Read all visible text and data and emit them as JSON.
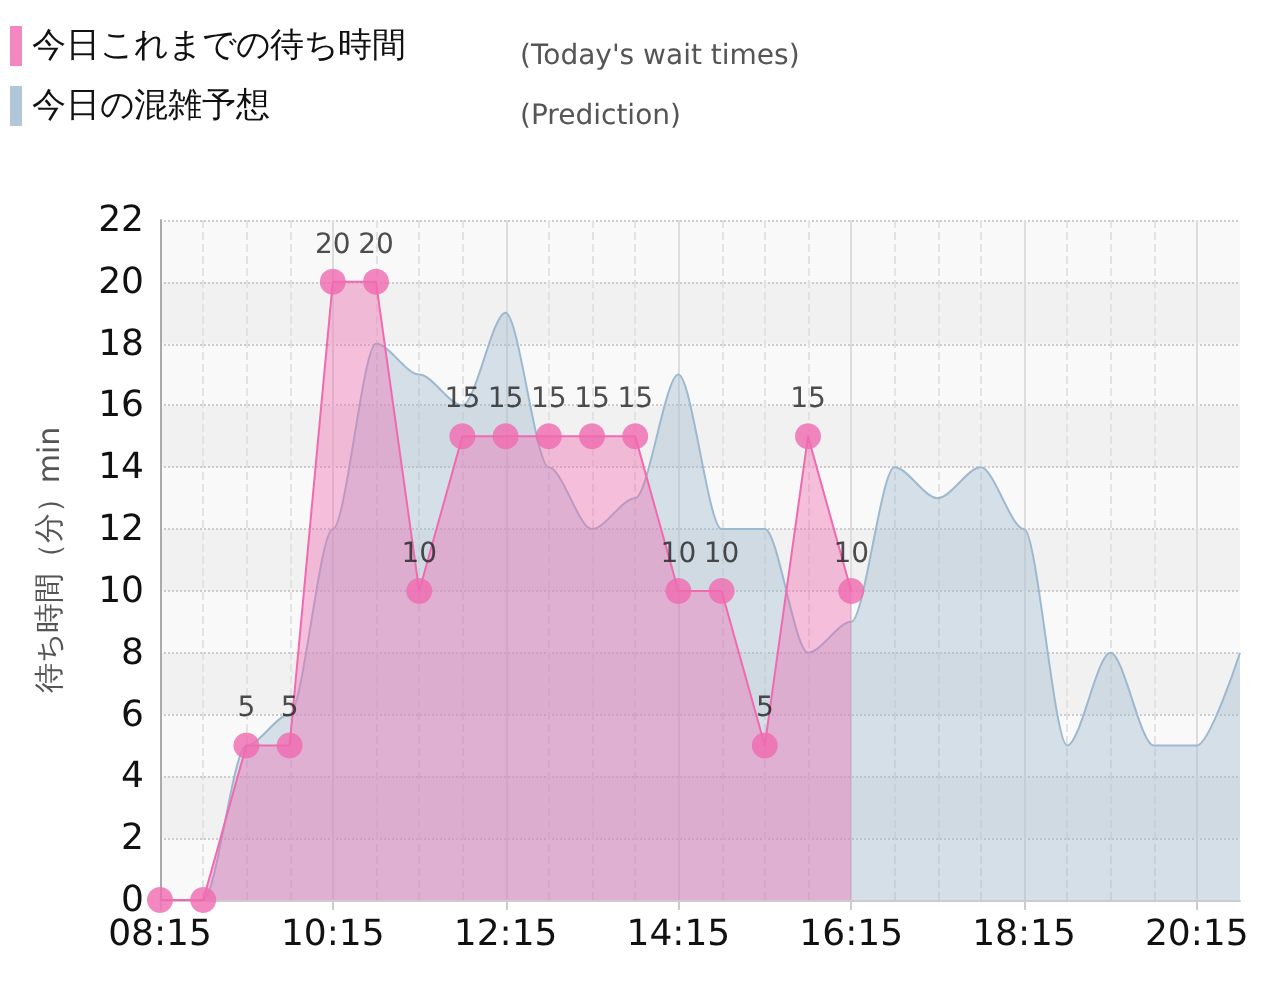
{
  "chart_data": {
    "type": "area",
    "ylabel": "待ち時間（分）min",
    "annotations": [
      "(Today's wait times)",
      "(Prediction)"
    ],
    "xlim": [
      8.25,
      20.75
    ],
    "xticks": [
      {
        "value": 8.25,
        "label": "08:15"
      },
      {
        "value": 10.25,
        "label": "10:15"
      },
      {
        "value": 12.25,
        "label": "12:15"
      },
      {
        "value": 14.25,
        "label": "14:15"
      },
      {
        "value": 16.25,
        "label": "16:15"
      },
      {
        "value": 18.25,
        "label": "18:15"
      },
      {
        "value": 20.25,
        "label": "20:15"
      }
    ],
    "ylim": [
      0,
      22
    ],
    "yticks": [
      0,
      2,
      4,
      6,
      8,
      10,
      12,
      14,
      16,
      18,
      20,
      22
    ],
    "grid": true,
    "legend": "top left",
    "marker": "circle",
    "series": [
      {
        "name": "今日これまでの待ち時間",
        "color": "#f06ab0",
        "x": [
          8.25,
          8.75,
          9.25,
          9.75,
          10.25,
          10.75,
          11.25,
          11.75,
          12.25,
          12.75,
          13.25,
          13.75,
          14.25,
          14.75,
          15.25,
          15.75,
          16.25
        ],
        "values": [
          0,
          0,
          5,
          5,
          20,
          20,
          10,
          15,
          15,
          15,
          15,
          15,
          10,
          10,
          5,
          15,
          10
        ],
        "value_labels": [
          null,
          null,
          "5",
          "5",
          "20",
          "20",
          "10",
          "15",
          "15",
          "15",
          "15",
          "15",
          "10",
          "10",
          "5",
          "15",
          "10"
        ]
      },
      {
        "name": "今日の混雑予想",
        "color": "#9db8cf",
        "marker": "none",
        "x": [
          8.25,
          8.75,
          9.25,
          9.75,
          10.25,
          10.75,
          11.25,
          11.75,
          12.25,
          12.75,
          13.25,
          13.75,
          14.25,
          14.75,
          15.25,
          15.75,
          16.25,
          16.75,
          17.25,
          17.75,
          18.25,
          18.75,
          19.25,
          19.75,
          20.25,
          20.75
        ],
        "values": [
          0,
          0,
          5,
          6,
          12,
          18,
          17,
          16,
          19,
          14,
          12,
          13,
          17,
          12,
          12,
          8,
          9,
          14,
          13,
          14,
          12,
          5,
          8,
          5,
          5,
          8
        ]
      }
    ]
  }
}
